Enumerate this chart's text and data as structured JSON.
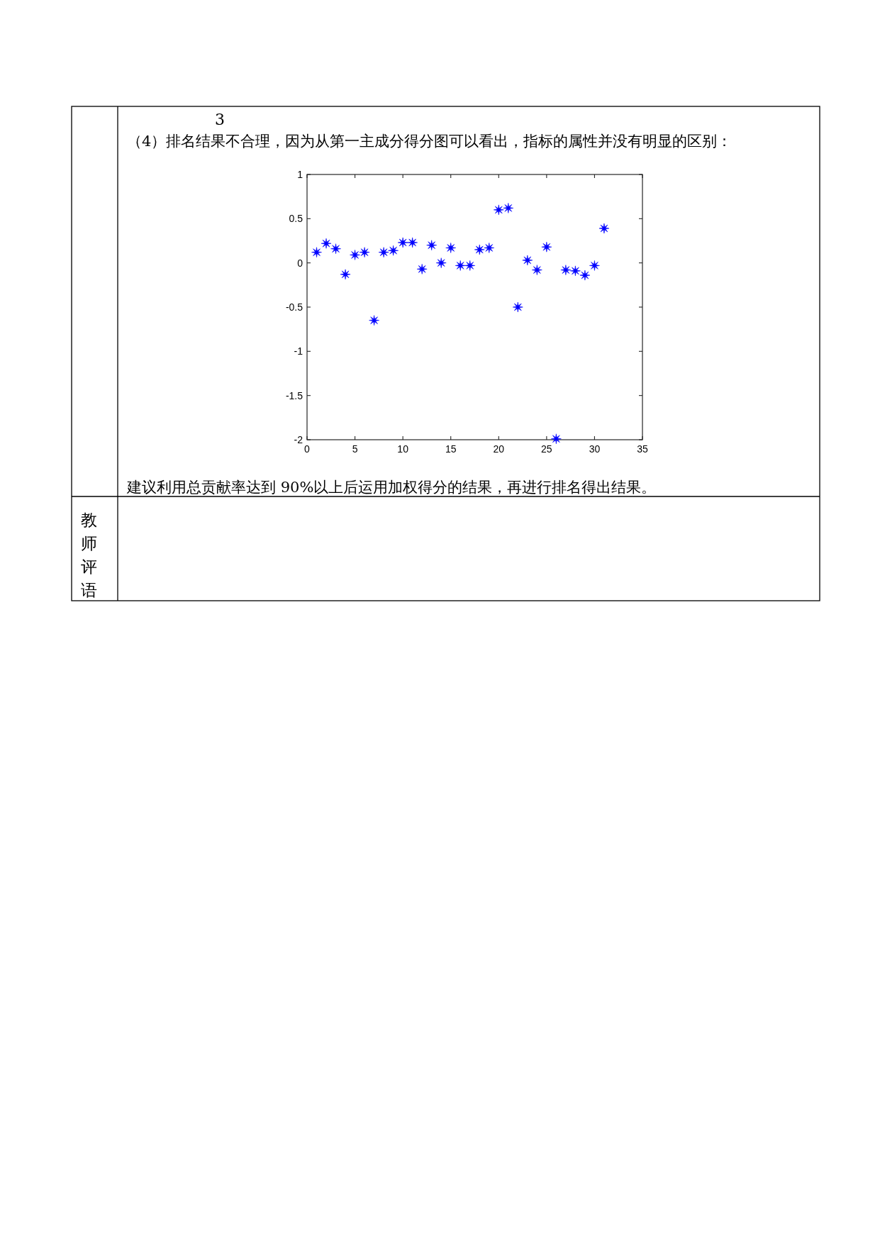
{
  "chart_data": {
    "type": "scatter",
    "title": "（4）排名结果不合理，因为从第一主成分得分图可以看出，指标的属性并没有明显的区别：",
    "annotations": [
      "3",
      "建议利用总贡献率达到 90%以上后运用加权得分的结果，再进行排名得出结果。",
      "教师评语"
    ],
    "x": [
      1,
      2,
      3,
      4,
      5,
      6,
      7,
      8,
      9,
      10,
      11,
      12,
      13,
      14,
      15,
      16,
      17,
      18,
      19,
      20,
      21,
      22,
      23,
      24,
      25,
      26,
      27,
      28,
      29,
      30,
      31
    ],
    "values": [
      0.12,
      0.22,
      0.16,
      -0.13,
      0.09,
      0.12,
      -0.65,
      0.12,
      0.14,
      0.23,
      0.23,
      -0.07,
      0.2,
      0,
      0.17,
      -0.03,
      -0.03,
      0.15,
      0.17,
      0.6,
      0.62,
      -0.5,
      0.03,
      -0.08,
      0.18,
      -1.99,
      -0.08,
      -0.09,
      -0.14,
      -0.03,
      0.39
    ],
    "color": "#0000ff",
    "marker": "star",
    "xlim": [
      0,
      35
    ],
    "xticks": [
      0,
      5,
      10,
      15,
      20,
      25,
      30,
      35
    ],
    "ylim": [
      -2,
      1
    ],
    "yticks": [
      -2,
      -1.5,
      -1,
      -0.5,
      0,
      0.5,
      1
    ],
    "grid": false
  }
}
